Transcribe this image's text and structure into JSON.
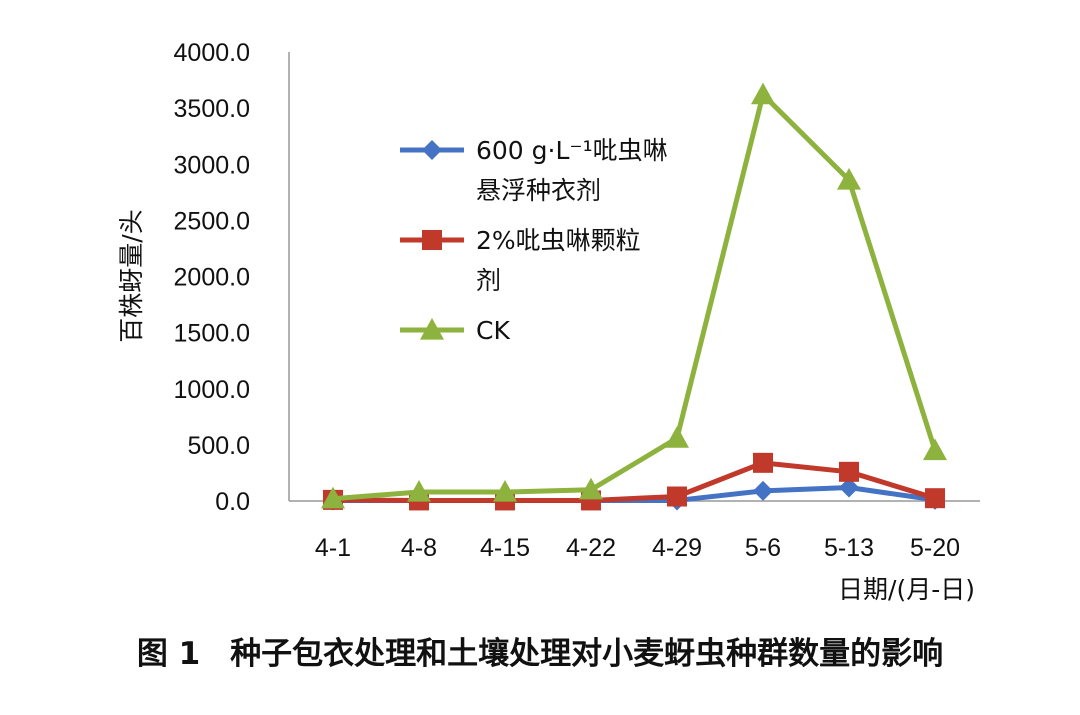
{
  "chart_data": {
    "type": "line",
    "categories": [
      "4-1",
      "4-8",
      "4-15",
      "4-22",
      "4-29",
      "5-6",
      "5-13",
      "5-20"
    ],
    "ylabel": "百株蚜量/头",
    "xlabel": "日期/(月-日)",
    "ylim": [
      0,
      4000
    ],
    "yticks": [
      "0.0",
      "500.0",
      "1000.0",
      "1500.0",
      "2000.0",
      "2500.0",
      "3000.0",
      "3500.0",
      "4000.0"
    ],
    "legend_position": "upper-left-inside",
    "series": [
      {
        "name_lines": [
          "600 g·L⁻¹吡虫啉",
          "悬浮种衣剂"
        ],
        "color": "#4472c4",
        "marker": "diamond",
        "values": [
          5,
          5,
          5,
          5,
          5,
          90,
          120,
          10
        ]
      },
      {
        "name_lines": [
          "2%吡虫啉颗粒",
          "剂"
        ],
        "color": "#c0392b",
        "marker": "square",
        "values": [
          10,
          5,
          5,
          5,
          40,
          340,
          260,
          25
        ]
      },
      {
        "name_lines": [
          "CK"
        ],
        "color": "#8db23e",
        "marker": "triangle",
        "values": [
          20,
          80,
          80,
          100,
          560,
          3620,
          2860,
          450
        ]
      }
    ]
  },
  "caption": {
    "figure_number": "图 1",
    "title": "种子包衣处理和土壤处理对小麦蚜虫种群数量的影响"
  }
}
